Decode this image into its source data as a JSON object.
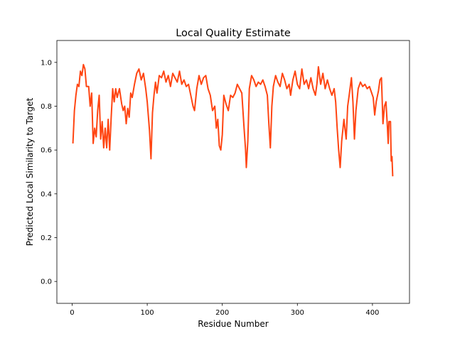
{
  "chart_data": {
    "type": "line",
    "title": "Local Quality Estimate",
    "x_label": "Residue Number",
    "y_label": "Predicted Local Similarity to Target",
    "color": "#ff4512",
    "x": [
      1,
      3,
      5,
      7,
      9,
      11,
      13,
      15,
      17,
      19,
      22,
      24,
      26,
      28,
      30,
      32,
      34,
      36,
      38,
      40,
      42,
      44,
      46,
      48,
      50,
      52,
      54,
      56,
      58,
      60,
      63,
      66,
      68,
      70,
      72,
      74,
      76,
      78,
      80,
      83,
      86,
      89,
      92,
      95,
      98,
      100,
      103,
      105,
      107,
      109,
      111,
      113,
      116,
      119,
      122,
      125,
      128,
      131,
      134,
      137,
      140,
      143,
      146,
      149,
      152,
      155,
      158,
      161,
      163,
      166,
      169,
      172,
      175,
      178,
      181,
      184,
      187,
      190,
      192,
      194,
      196,
      198,
      200,
      202,
      205,
      208,
      211,
      214,
      217,
      220,
      223,
      226,
      229,
      231,
      232,
      234,
      236,
      239,
      242,
      245,
      248,
      251,
      254,
      257,
      260,
      262,
      264,
      266,
      268,
      271,
      274,
      277,
      280,
      283,
      286,
      289,
      291,
      294,
      297,
      300,
      303,
      306,
      309,
      312,
      315,
      318,
      321,
      324,
      326,
      328,
      331,
      334,
      337,
      340,
      343,
      346,
      349,
      351,
      353,
      355,
      357,
      359,
      362,
      365,
      367,
      369,
      372,
      374,
      376,
      378,
      381,
      384,
      387,
      390,
      393,
      396,
      399,
      401,
      403,
      405,
      408,
      410,
      412,
      414,
      416,
      418,
      420,
      421,
      422,
      424,
      425,
      426,
      427
    ],
    "values": [
      0.63,
      0.78,
      0.85,
      0.9,
      0.89,
      0.96,
      0.94,
      0.99,
      0.97,
      0.89,
      0.89,
      0.8,
      0.86,
      0.63,
      0.7,
      0.66,
      0.78,
      0.85,
      0.65,
      0.73,
      0.61,
      0.7,
      0.61,
      0.74,
      0.6,
      0.75,
      0.88,
      0.82,
      0.88,
      0.84,
      0.88,
      0.81,
      0.78,
      0.8,
      0.72,
      0.79,
      0.75,
      0.86,
      0.84,
      0.9,
      0.95,
      0.97,
      0.92,
      0.95,
      0.88,
      0.82,
      0.69,
      0.56,
      0.77,
      0.85,
      0.91,
      0.86,
      0.94,
      0.93,
      0.96,
      0.91,
      0.94,
      0.89,
      0.95,
      0.93,
      0.91,
      0.96,
      0.9,
      0.92,
      0.89,
      0.9,
      0.85,
      0.8,
      0.78,
      0.88,
      0.94,
      0.9,
      0.93,
      0.94,
      0.88,
      0.85,
      0.78,
      0.8,
      0.7,
      0.74,
      0.62,
      0.6,
      0.67,
      0.85,
      0.81,
      0.78,
      0.85,
      0.84,
      0.86,
      0.9,
      0.88,
      0.86,
      0.7,
      0.6,
      0.52,
      0.64,
      0.88,
      0.94,
      0.92,
      0.89,
      0.91,
      0.9,
      0.92,
      0.89,
      0.85,
      0.72,
      0.61,
      0.8,
      0.89,
      0.94,
      0.91,
      0.89,
      0.95,
      0.92,
      0.88,
      0.9,
      0.85,
      0.92,
      0.96,
      0.9,
      0.88,
      0.97,
      0.9,
      0.92,
      0.88,
      0.93,
      0.88,
      0.85,
      0.9,
      0.98,
      0.9,
      0.95,
      0.88,
      0.92,
      0.88,
      0.85,
      0.88,
      0.82,
      0.7,
      0.6,
      0.52,
      0.64,
      0.74,
      0.65,
      0.8,
      0.85,
      0.93,
      0.82,
      0.65,
      0.78,
      0.88,
      0.91,
      0.89,
      0.9,
      0.88,
      0.89,
      0.86,
      0.84,
      0.76,
      0.82,
      0.87,
      0.92,
      0.93,
      0.72,
      0.8,
      0.82,
      0.7,
      0.63,
      0.73,
      0.73,
      0.55,
      0.57,
      0.48
    ],
    "xlim": [
      -20.35,
      449.35
    ],
    "xticks": [
      0,
      100,
      200,
      300,
      400
    ],
    "ylim": [
      -0.1,
      1.1
    ],
    "yticks": [
      {
        "value": 0,
        "label": "0.0"
      },
      0.2,
      0.4,
      0.6,
      0.8,
      {
        "value": 1,
        "label": "1.0"
      }
    ]
  }
}
